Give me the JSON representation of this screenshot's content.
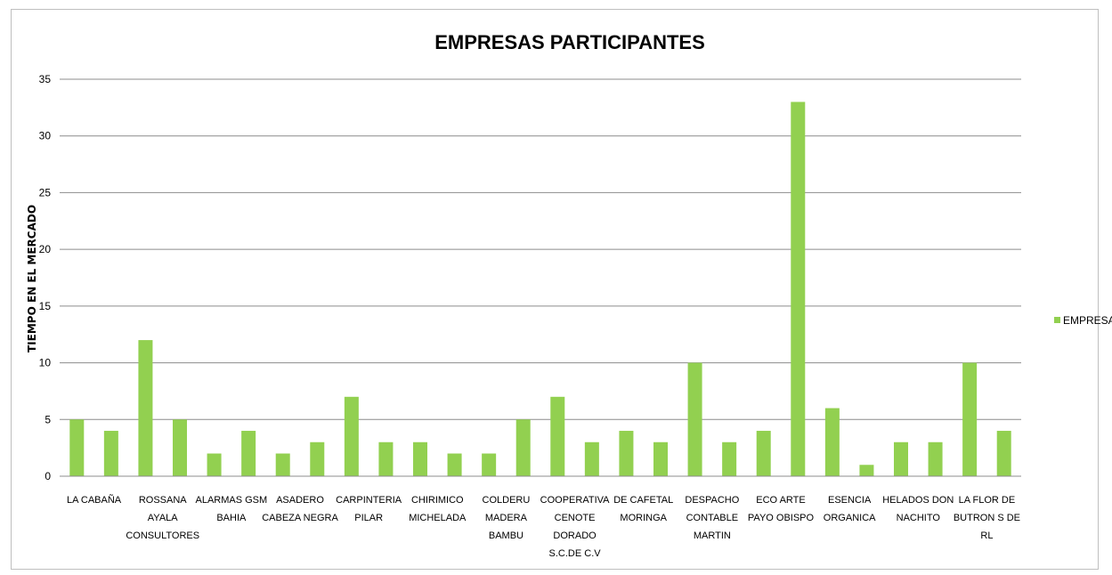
{
  "chart_data": {
    "type": "bar",
    "title": "EMPRESAS PARTICIPANTES",
    "xlabel": "",
    "ylabel": "TIEMPO EN EL MERCADO",
    "ylim": [
      0,
      35
    ],
    "yticks": [
      0,
      5,
      10,
      15,
      20,
      25,
      30,
      35
    ],
    "grid": true,
    "legend_position": "right",
    "bar_color": "#92D050",
    "categories": [
      "LA CABAÑA",
      "",
      "ROSSANA AYALA CONSULTORES",
      "",
      "ALARMAS GSM BAHIA",
      "",
      "ASADERO CABEZA NEGRA",
      "",
      "CARPINTERIA PILAR",
      "",
      "CHIRIMICO MICHELADA",
      "",
      "COLDERU MADERA BAMBU",
      "",
      "COOPERATIVA CENOTE DORADO S.C.DE C.V",
      "",
      "DE CAFETAL MORINGA",
      "",
      "DESPACHO CONTABLE MARTIN",
      "",
      "ECO ARTE PAYO OBISPO",
      "",
      "ESENCIA ORGANICA",
      "",
      "HELADOS DON NACHITO",
      "",
      "LA FLOR DE BUTRON S DE RL",
      ""
    ],
    "category_lines": [
      [
        "LA CABAÑA"
      ],
      [],
      [
        "ROSSANA",
        "AYALA",
        "CONSULTORES"
      ],
      [],
      [
        "ALARMAS GSM",
        "BAHIA"
      ],
      [],
      [
        "ASADERO",
        "CABEZA NEGRA"
      ],
      [],
      [
        "CARPINTERIA",
        "PILAR"
      ],
      [],
      [
        "CHIRIMICO",
        "MICHELADA"
      ],
      [],
      [
        "COLDERU",
        "MADERA",
        "BAMBU"
      ],
      [],
      [
        "COOPERATIVA",
        "CENOTE",
        "DORADO",
        "S.C.DE C.V"
      ],
      [],
      [
        "DE CAFETAL",
        "MORINGA"
      ],
      [],
      [
        "DESPACHO",
        "CONTABLE",
        "MARTIN"
      ],
      [],
      [
        "ECO ARTE",
        "PAYO OBISPO"
      ],
      [],
      [
        "ESENCIA",
        "ORGANICA"
      ],
      [],
      [
        "HELADOS DON",
        "NACHITO"
      ],
      [],
      [
        "LA FLOR DE",
        "BUTRON S DE",
        "RL"
      ],
      []
    ],
    "series": [
      {
        "name": "EMPRESAS",
        "values": [
          5,
          4,
          12,
          5,
          2,
          4,
          2,
          3,
          7,
          3,
          3,
          2,
          2,
          5,
          7,
          3,
          4,
          3,
          10,
          3,
          4,
          33,
          6,
          1,
          3,
          3,
          10,
          4
        ]
      }
    ]
  }
}
